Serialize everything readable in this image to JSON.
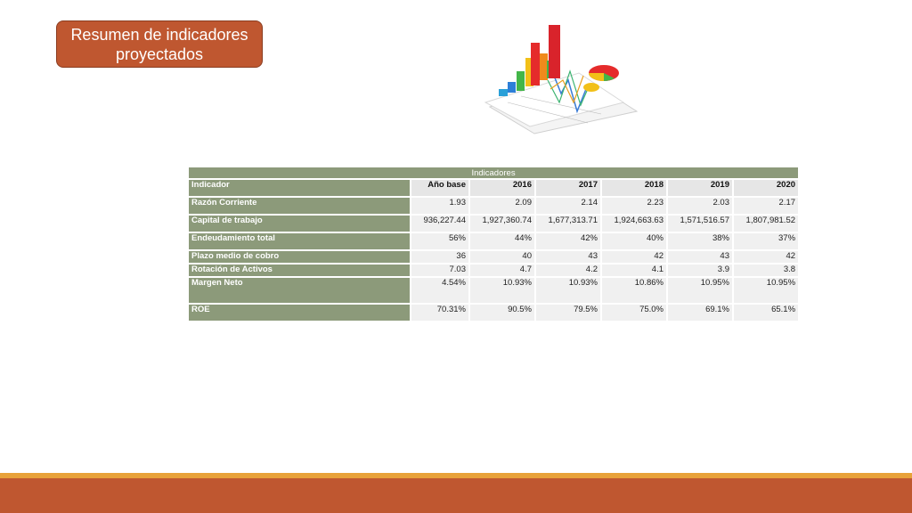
{
  "title": "Resumen de indicadores proyectados",
  "colors": {
    "accent": "#bf5730",
    "table_header": "#8c9a7a",
    "bar_gold": "#e8a23a"
  },
  "clipart": {
    "icon": "chart-clipart-icon"
  },
  "table": {
    "caption": "Indicadores",
    "headers": [
      "Indicador",
      "Año base",
      "2016",
      "2017",
      "2018",
      "2019",
      "2020"
    ],
    "rows": [
      {
        "label": "Razón Corriente",
        "values": [
          "1.93",
          "2.09",
          "2.14",
          "2.23",
          "2.03",
          "2.17"
        ]
      },
      {
        "label": "Capital de trabajo",
        "values": [
          "936,227.44",
          "1,927,360.74",
          "1,677,313.71",
          "1,924,663.63",
          "1,571,516.57",
          "1,807,981.52"
        ]
      },
      {
        "label": "Endeudamiento total",
        "values": [
          "56%",
          "44%",
          "42%",
          "40%",
          "38%",
          "37%"
        ]
      },
      {
        "label": "Plazo medio de cobro",
        "values": [
          "36",
          "40",
          "43",
          "42",
          "43",
          "42"
        ]
      },
      {
        "label": "Rotación de Activos",
        "values": [
          "7.03",
          "4.7",
          "4.2",
          "4.1",
          "3.9",
          "3.8"
        ]
      },
      {
        "label": "Margen Neto",
        "values": [
          "4.54%",
          "10.93%",
          "10.93%",
          "10.86%",
          "10.95%",
          "10.95%"
        ]
      },
      {
        "label": "ROE",
        "values": [
          "70.31%",
          "90.5%",
          "79.5%",
          "75.0%",
          "69.1%",
          "65.1%"
        ]
      }
    ]
  }
}
